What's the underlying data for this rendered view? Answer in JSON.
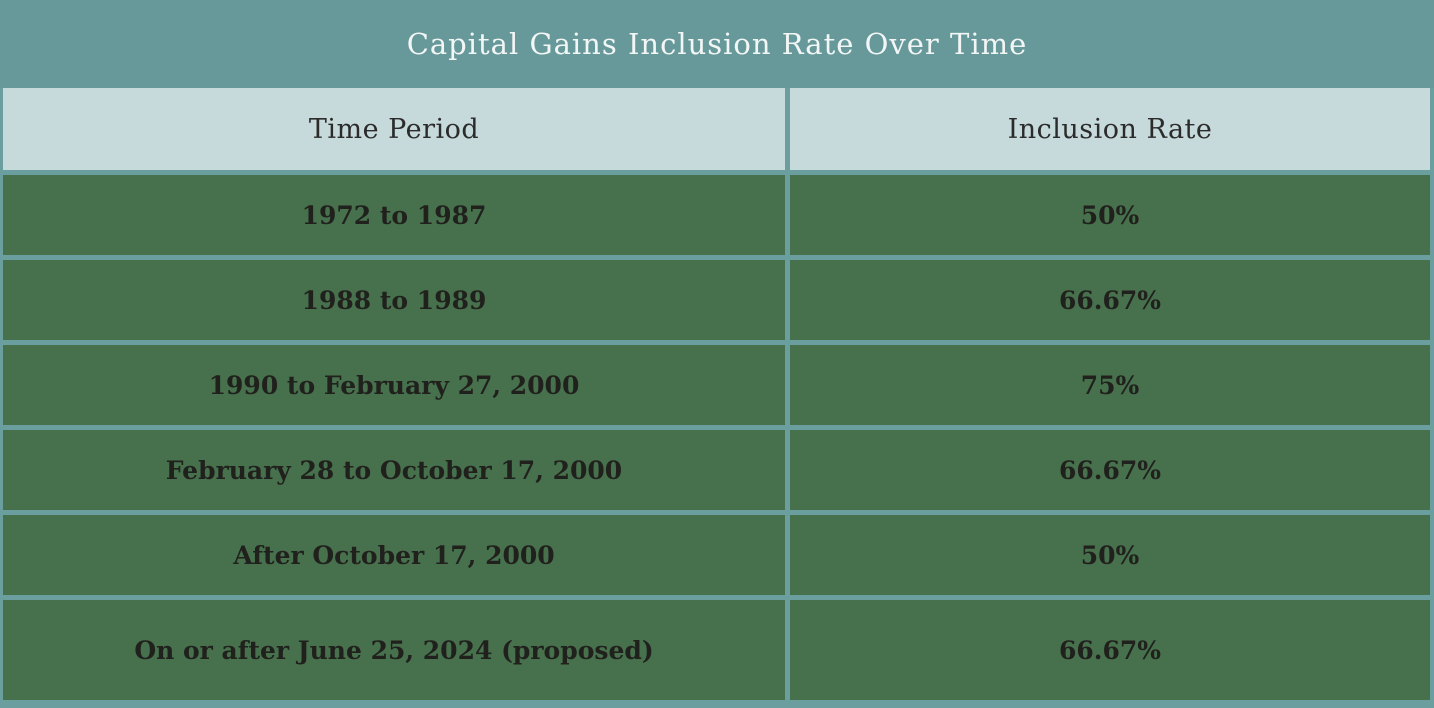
{
  "title": "Capital Gains Inclusion Rate Over Time",
  "table": {
    "columns": [
      "Time Period",
      "Inclusion Rate"
    ],
    "rows": [
      {
        "period": "1972 to 1987",
        "rate": "50%"
      },
      {
        "period": "1988 to 1989",
        "rate": "66.67%"
      },
      {
        "period": "1990 to February 27, 2000",
        "rate": "75%"
      },
      {
        "period": "February 28 to October 17, 2000",
        "rate": "66.67%"
      },
      {
        "period": "After October 17, 2000",
        "rate": "50%"
      },
      {
        "period": "On or after June 25, 2024 (proposed)",
        "rate": "66.67%"
      }
    ]
  },
  "colors": {
    "teal_band": "#67999B",
    "border_teal": "#6B9E9F",
    "header_bg": "#C6D9DB",
    "row_green": "#47704D",
    "title_text": "#F2F6F5",
    "header_text": "#2B2B2B",
    "body_text": "#20211D"
  },
  "chart_data": {
    "type": "table",
    "title": "Capital Gains Inclusion Rate Over Time",
    "columns": [
      "Time Period",
      "Inclusion Rate"
    ],
    "rows": [
      [
        "1972 to 1987",
        "50%"
      ],
      [
        "1988 to 1989",
        "66.67%"
      ],
      [
        "1990 to February 27, 2000",
        "75%"
      ],
      [
        "February 28 to October 17, 2000",
        "66.67%"
      ],
      [
        "After October 17, 2000",
        "50%"
      ],
      [
        "On or after June 25, 2024 (proposed)",
        "66.67%"
      ]
    ],
    "inclusion_rate_values_pct": [
      50,
      66.67,
      75,
      66.67,
      50,
      66.67
    ]
  }
}
